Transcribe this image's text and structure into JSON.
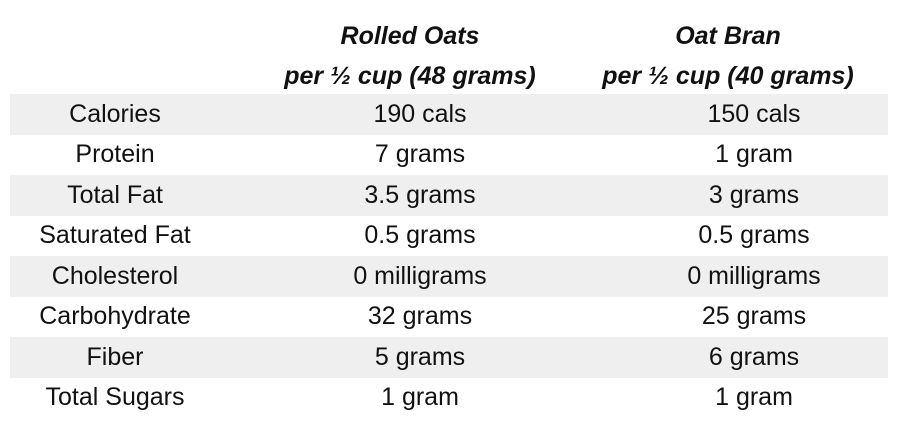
{
  "columns": [
    {
      "title": "Rolled Oats",
      "subtitle": "per ½ cup (48 grams)"
    },
    {
      "title": "Oat Bran",
      "subtitle": "per ½ cup (40 grams)"
    }
  ],
  "rows": [
    {
      "label": "Calories",
      "values": [
        "190 cals",
        "150 cals"
      ]
    },
    {
      "label": "Protein",
      "values": [
        "7 grams",
        "1 gram"
      ]
    },
    {
      "label": "Total Fat",
      "values": [
        "3.5 grams",
        "3 grams"
      ]
    },
    {
      "label": "Saturated Fat",
      "values": [
        "0.5 grams",
        "0.5 grams"
      ]
    },
    {
      "label": "Cholesterol",
      "values": [
        "0 milligrams",
        "0 milligrams"
      ]
    },
    {
      "label": "Carbohydrate",
      "values": [
        "32 grams",
        "25 grams"
      ]
    },
    {
      "label": "Fiber",
      "values": [
        "5 grams",
        "6 grams"
      ]
    },
    {
      "label": "Total Sugars",
      "values": [
        "1 gram",
        "1 gram"
      ]
    }
  ],
  "colors": {
    "shaded_row": "#efefef",
    "text": "#111111"
  }
}
